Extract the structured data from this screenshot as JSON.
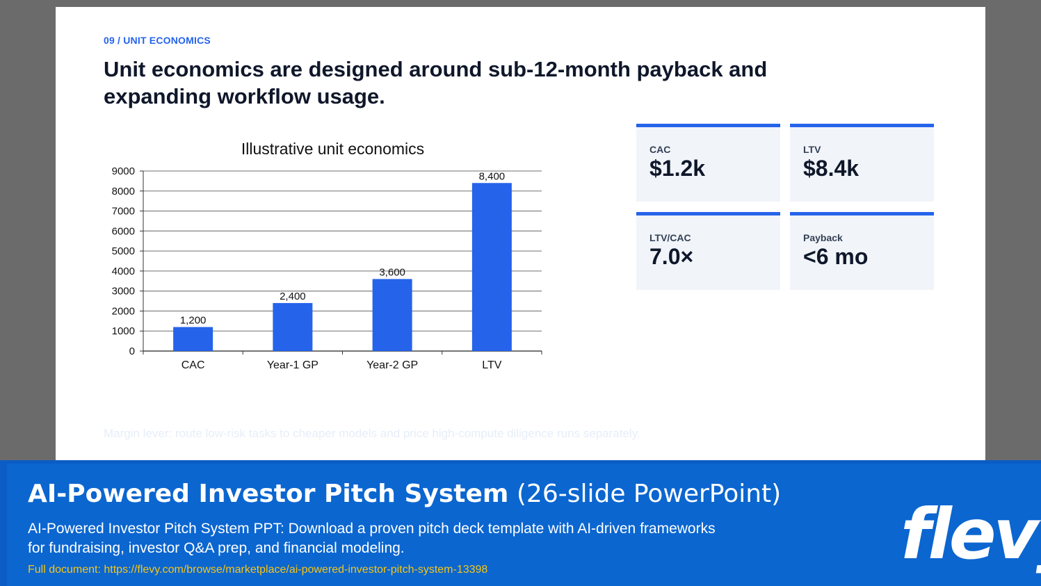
{
  "slide": {
    "kicker": "09 / UNIT ECONOMICS",
    "headline": "Unit economics are designed around sub-12-month payback and expanding workflow usage.",
    "note": "Margin lever: route low-risk tasks to cheaper models and price high-compute diligence runs separately."
  },
  "chart_data": {
    "type": "bar",
    "title": "Illustrative unit economics",
    "categories": [
      "CAC",
      "Year-1 GP",
      "Year-2 GP",
      "LTV"
    ],
    "values": [
      1200,
      2400,
      3600,
      8400
    ],
    "data_labels": [
      "1,200",
      "2,400",
      "3,600",
      "8,400"
    ],
    "y_ticks": [
      0,
      1000,
      2000,
      3000,
      4000,
      5000,
      6000,
      7000,
      8000,
      9000
    ],
    "ylim": [
      0,
      9000
    ],
    "grid": true,
    "bar_color": "#2563eb"
  },
  "cards": [
    {
      "label": "CAC",
      "value": "$1.2k"
    },
    {
      "label": "LTV",
      "value": "$8.4k"
    },
    {
      "label": "LTV/CAC",
      "value": "7.0×"
    },
    {
      "label": "Payback",
      "value": "<6 mo"
    }
  ],
  "banner": {
    "title_strong": "AI-Powered Investor Pitch System",
    "title_light": "(26-slide PowerPoint)",
    "description": "AI-Powered Investor Pitch System PPT: Download a proven pitch deck template with AI-driven frameworks for fundraising, investor Q&A prep, and financial modeling.",
    "link": "Full document: https://flevy.com/browse/marketplace/ai-powered-investor-pitch-system-13398",
    "logo": "flevy"
  },
  "colors": {
    "accent": "#2563eb",
    "banner": "#0b66d0",
    "link": "#f5c518"
  }
}
